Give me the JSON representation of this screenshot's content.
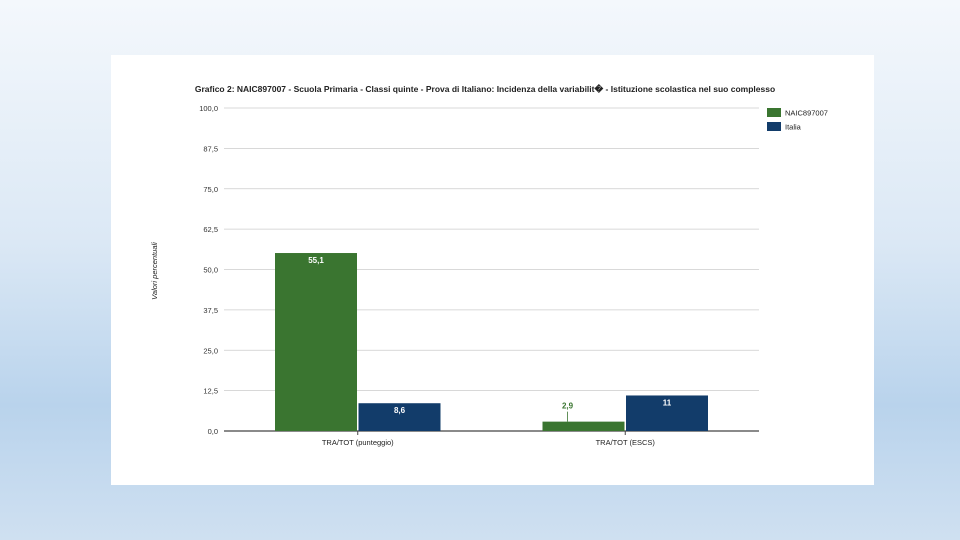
{
  "colors": {
    "naic": "#3a7530",
    "italia": "#123c6a",
    "grid": "#cccccc",
    "axis": "#444444"
  },
  "chart_data": {
    "type": "bar",
    "title": "Grafico 2: NAIC897007 - Scuola Primaria - Classi quinte - Prova di Italiano: Incidenza della variabilit� - Istituzione scolastica nel suo complesso",
    "ylabel": "Valori percentuali",
    "xlabel": "",
    "ylim": [
      0,
      100
    ],
    "yticks": [
      "0,0",
      "12,5",
      "25,0",
      "37,5",
      "50,0",
      "62,5",
      "75,0",
      "87,5",
      "100,0"
    ],
    "grid": true,
    "legend_position": "top-right",
    "categories": [
      "TRA/TOT (punteggio)",
      "TRA/TOT (ESCS)"
    ],
    "series": [
      {
        "name": "NAIC897007",
        "values": [
          55.1,
          2.9
        ],
        "labels": [
          "55,1",
          "2,9"
        ]
      },
      {
        "name": "Italia",
        "values": [
          8.6,
          11
        ],
        "labels": [
          "8,6",
          "11"
        ]
      }
    ]
  }
}
